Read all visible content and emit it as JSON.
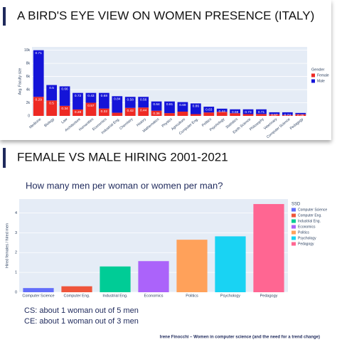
{
  "slides": [
    {
      "heading": "A BIRD'S EYE VIEW ON WOMEN PRESENCE (ITALY)"
    },
    {
      "heading": "FEMALE VS MALE HIRING 2001-2021",
      "subtitle": "How many men per woman or women per man?",
      "notes": [
        "CS: about 1 woman out of 5 men",
        "CE: about 1 woman out of 3 men"
      ],
      "footer": "Irene Finocchi – Women in computer science (and the need for a trend change)"
    }
  ],
  "chart_data": [
    {
      "type": "stacked_bar",
      "ylabel": "Avg. Faculty size",
      "legend_title": "Gender",
      "categories": [
        "Medicine",
        "Biology",
        "Law",
        "Architecture",
        "Humanities",
        "Economics",
        "Industrial Eng.",
        "Chemistry",
        "History",
        "Mathematics",
        "Physics",
        "Agriculture",
        "Computer Eng.",
        "Politics",
        "Psychology",
        "Statistics",
        "Earth Science",
        "Philosophy",
        "Veterinary",
        "Computer Science",
        "Pedagogy"
      ],
      "series": [
        {
          "name": "Female",
          "color": "#ee2a24",
          "values": [
            2900,
            2350,
            1530,
            980,
            2000,
            1120,
            480,
            1220,
            1280,
            790,
            420,
            650,
            270,
            520,
            620,
            410,
            270,
            290,
            240,
            140,
            250
          ],
          "shares": [
            0.29,
            0.5,
            0.34,
            0.28,
            0.57,
            0.32,
            null,
            0.42,
            0.44,
            0.36,
            null,
            null,
            null,
            null,
            null,
            null,
            null,
            null,
            null,
            null,
            null
          ]
        },
        {
          "name": "Male",
          "color": "#1414d8",
          "values": [
            7100,
            2350,
            2970,
            2520,
            1500,
            2380,
            2520,
            1680,
            1620,
            1410,
            1780,
            1450,
            1630,
            880,
            480,
            590,
            730,
            710,
            310,
            410,
            200
          ],
          "shares": [
            0.71,
            0.5,
            0.66,
            0.72,
            0.43,
            0.68,
            0.84,
            0.58,
            0.56,
            0.64,
            0.81,
            0.69,
            0.86,
            0.63,
            0.44,
            0.59,
            0.73,
            0.71,
            0.57,
            0.74,
            0.45
          ]
        }
      ],
      "ylim": [
        0,
        10500
      ],
      "yticks": [
        0,
        {
          "value": 2000,
          "label": "2k"
        },
        {
          "value": 4000,
          "label": "4k"
        },
        {
          "value": 6000,
          "label": "6k"
        },
        {
          "value": 8000,
          "label": "8k"
        },
        {
          "value": 10000,
          "label": "10k"
        }
      ],
      "grid": true
    },
    {
      "type": "bar",
      "ylabel": "Hired females / hired men",
      "legend_title": "SSD",
      "categories": [
        "Computer Science",
        "Computer Eng.",
        "Industrial Eng.",
        "Economics",
        "Politics",
        "Psychology",
        "Pedagogy"
      ],
      "values": [
        0.21,
        0.3,
        1.3,
        1.57,
        2.65,
        2.82,
        4.45
      ],
      "colors": [
        "#636efa",
        "#ef553b",
        "#00cc96",
        "#ab63fa",
        "#ffa15a",
        "#19d3f3",
        "#ff6692"
      ],
      "ylim": [
        0,
        4.7
      ],
      "yticks": [
        0,
        1,
        2,
        3,
        4
      ],
      "grid": true
    }
  ]
}
